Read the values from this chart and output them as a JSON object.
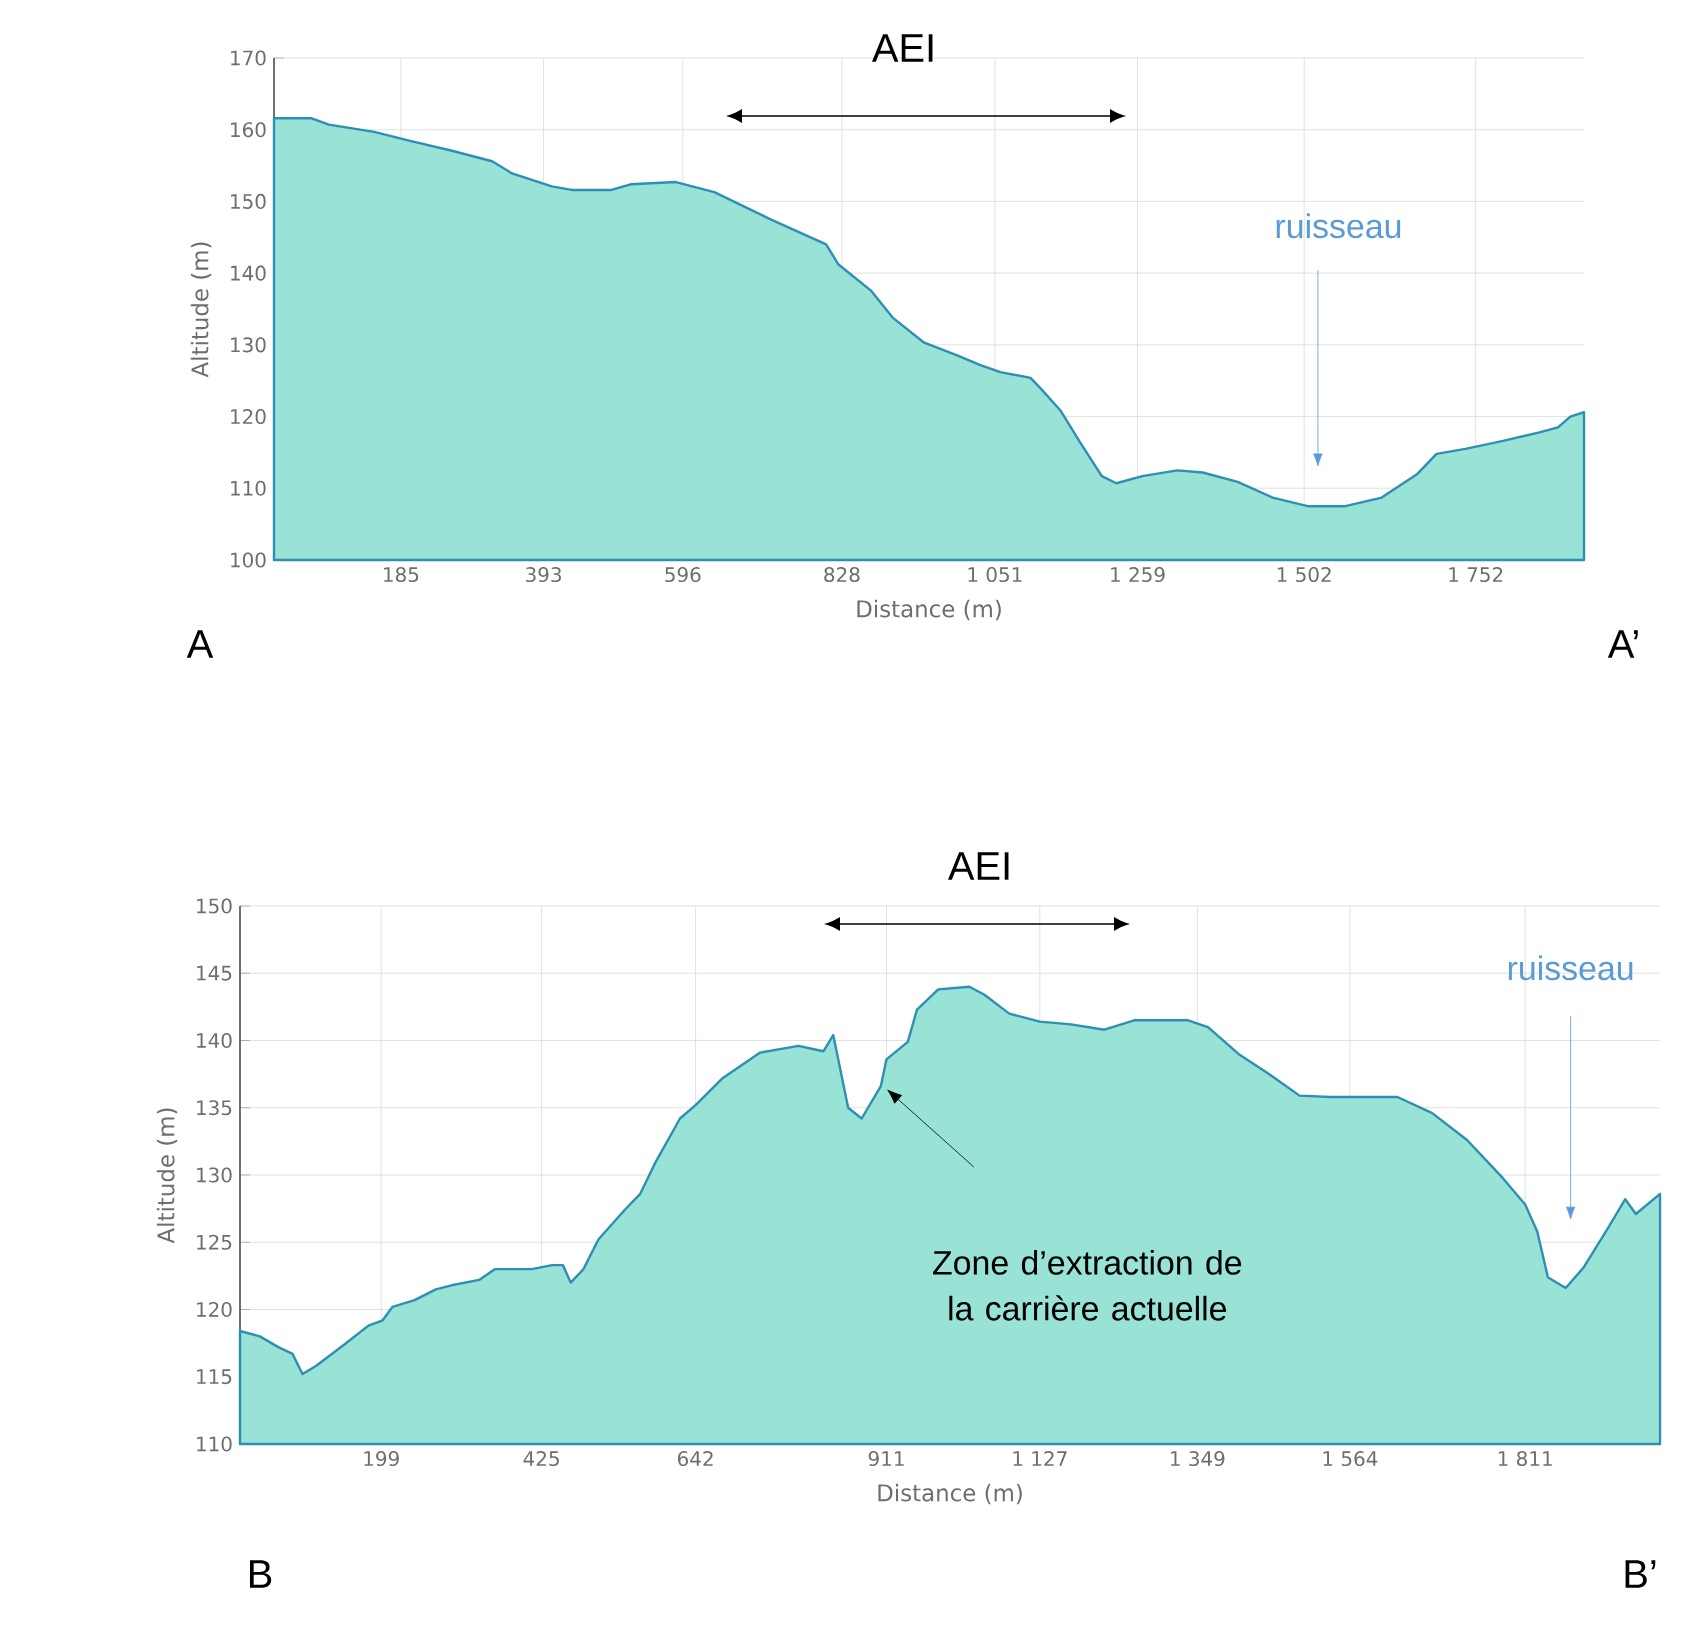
{
  "chart_data": [
    {
      "type": "area",
      "xlabel": "Distance (m)",
      "ylabel": "Altitude (m)",
      "color": "#99e2d6",
      "grid": true,
      "xlim": [
        0,
        1910
      ],
      "ylim": [
        100,
        170
      ],
      "xticks": [
        185,
        393,
        596,
        828,
        {
          "value": 1051,
          "label": "1 051"
        },
        {
          "value": 1259,
          "label": "1 259"
        },
        {
          "value": 1502,
          "label": "1 502"
        },
        {
          "value": 1752,
          "label": "1 752"
        }
      ],
      "yticks": [
        100,
        110,
        120,
        130,
        140,
        150,
        160,
        170
      ],
      "x": [
        0,
        54,
        80,
        146,
        200,
        258,
        318,
        347,
        405,
        434,
        492,
        521,
        586,
        642,
        724,
        805,
        823,
        870,
        902,
        948,
        997,
        1029,
        1059,
        1103,
        1118,
        1147,
        1176,
        1207,
        1228,
        1266,
        1317,
        1354,
        1405,
        1456,
        1507,
        1562,
        1615,
        1667,
        1695,
        1737,
        1792,
        1845,
        1872,
        1890,
        1910
      ],
      "values": [
        161.6,
        161.6,
        160.7,
        159.7,
        158.4,
        157.1,
        155.6,
        153.9,
        152.1,
        151.6,
        151.6,
        152.4,
        152.7,
        151.3,
        147.5,
        144.0,
        141.2,
        137.6,
        133.8,
        130.3,
        128.5,
        127.2,
        126.2,
        125.4,
        123.9,
        120.8,
        116.3,
        111.7,
        110.7,
        111.7,
        112.5,
        112.2,
        110.9,
        108.7,
        107.5,
        107.5,
        108.7,
        112.0,
        114.8,
        115.5,
        116.6,
        117.8,
        118.5,
        120.0,
        120.6
      ],
      "annotations": [
        "A",
        "A’",
        "AEI",
        "ruisseau"
      ]
    },
    {
      "type": "area",
      "xlabel": "Distance (m)",
      "ylabel": "Altitude (m)",
      "color": "#99e2d6",
      "grid": true,
      "xlim": [
        0,
        2001
      ],
      "ylim": [
        110,
        150
      ],
      "xticks": [
        199,
        425,
        642,
        911,
        {
          "value": 1127,
          "label": "1 127"
        },
        {
          "value": 1349,
          "label": "1 349"
        },
        {
          "value": 1564,
          "label": "1 564"
        },
        {
          "value": 1811,
          "label": "1 811"
        }
      ],
      "yticks": [
        110,
        115,
        120,
        125,
        130,
        135,
        140,
        145,
        150
      ],
      "x": [
        0,
        28,
        54,
        74,
        88,
        107,
        147,
        181,
        201,
        215,
        246,
        276,
        298,
        337,
        359,
        411,
        440,
        455,
        466,
        484,
        505,
        542,
        564,
        586,
        620,
        642,
        680,
        733,
        787,
        822,
        836,
        857,
        876,
        903,
        911,
        941,
        954,
        984,
        1028,
        1049,
        1084,
        1127,
        1171,
        1218,
        1260,
        1336,
        1364,
        1407,
        1450,
        1493,
        1536,
        1631,
        1680,
        1729,
        1779,
        1811,
        1828,
        1843,
        1868,
        1893,
        1927,
        1952,
        1967,
        2001
      ],
      "values": [
        118.4,
        118.0,
        117.2,
        116.7,
        115.2,
        115.8,
        117.4,
        118.8,
        119.2,
        120.2,
        120.7,
        121.5,
        121.8,
        122.2,
        123.0,
        123.0,
        123.3,
        123.3,
        122.0,
        123.0,
        125.2,
        127.4,
        128.6,
        131.0,
        134.2,
        135.2,
        137.2,
        139.1,
        139.6,
        139.2,
        140.4,
        135.0,
        134.2,
        136.6,
        138.6,
        139.9,
        142.3,
        143.8,
        144.0,
        143.4,
        142.0,
        141.4,
        141.2,
        140.8,
        141.5,
        141.5,
        141.0,
        139.0,
        137.5,
        135.9,
        135.8,
        135.8,
        134.6,
        132.6,
        129.8,
        127.8,
        125.8,
        122.4,
        121.6,
        123.1,
        126.0,
        128.2,
        127.1,
        128.6
      ],
      "annotations": [
        "B",
        "B’",
        "AEI",
        "ruisseau",
        "Zone d’extraction de la carrière actuelle"
      ]
    }
  ]
}
